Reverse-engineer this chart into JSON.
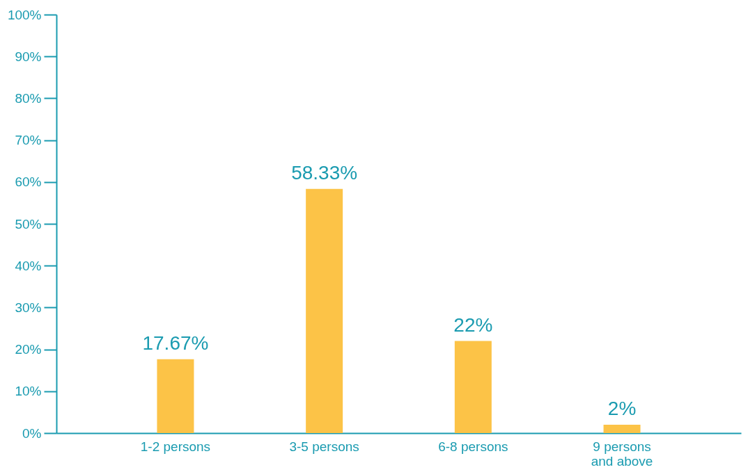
{
  "chart_data": {
    "type": "bar",
    "categories": [
      "1-2 persons",
      "3-5 persons",
      "6-8 persons",
      "9 persons and above"
    ],
    "values": [
      17.67,
      58.33,
      22,
      2
    ],
    "value_labels": [
      "17.67%",
      "58.33%",
      "22%",
      "2%"
    ],
    "color": "#fcc347",
    "ylim": [
      0,
      100
    ],
    "yticks": [
      {
        "value": 0,
        "label": "0%"
      },
      {
        "value": 10,
        "label": "10%"
      },
      {
        "value": 20,
        "label": "20%"
      },
      {
        "value": 30,
        "label": "30%"
      },
      {
        "value": 40,
        "label": "40%"
      },
      {
        "value": 50,
        "label": "50%"
      },
      {
        "value": 60,
        "label": "60%"
      },
      {
        "value": 70,
        "label": "70%"
      },
      {
        "value": 80,
        "label": "80%"
      },
      {
        "value": 90,
        "label": "90%"
      },
      {
        "value": 100,
        "label": "100%"
      }
    ],
    "grid": false
  }
}
